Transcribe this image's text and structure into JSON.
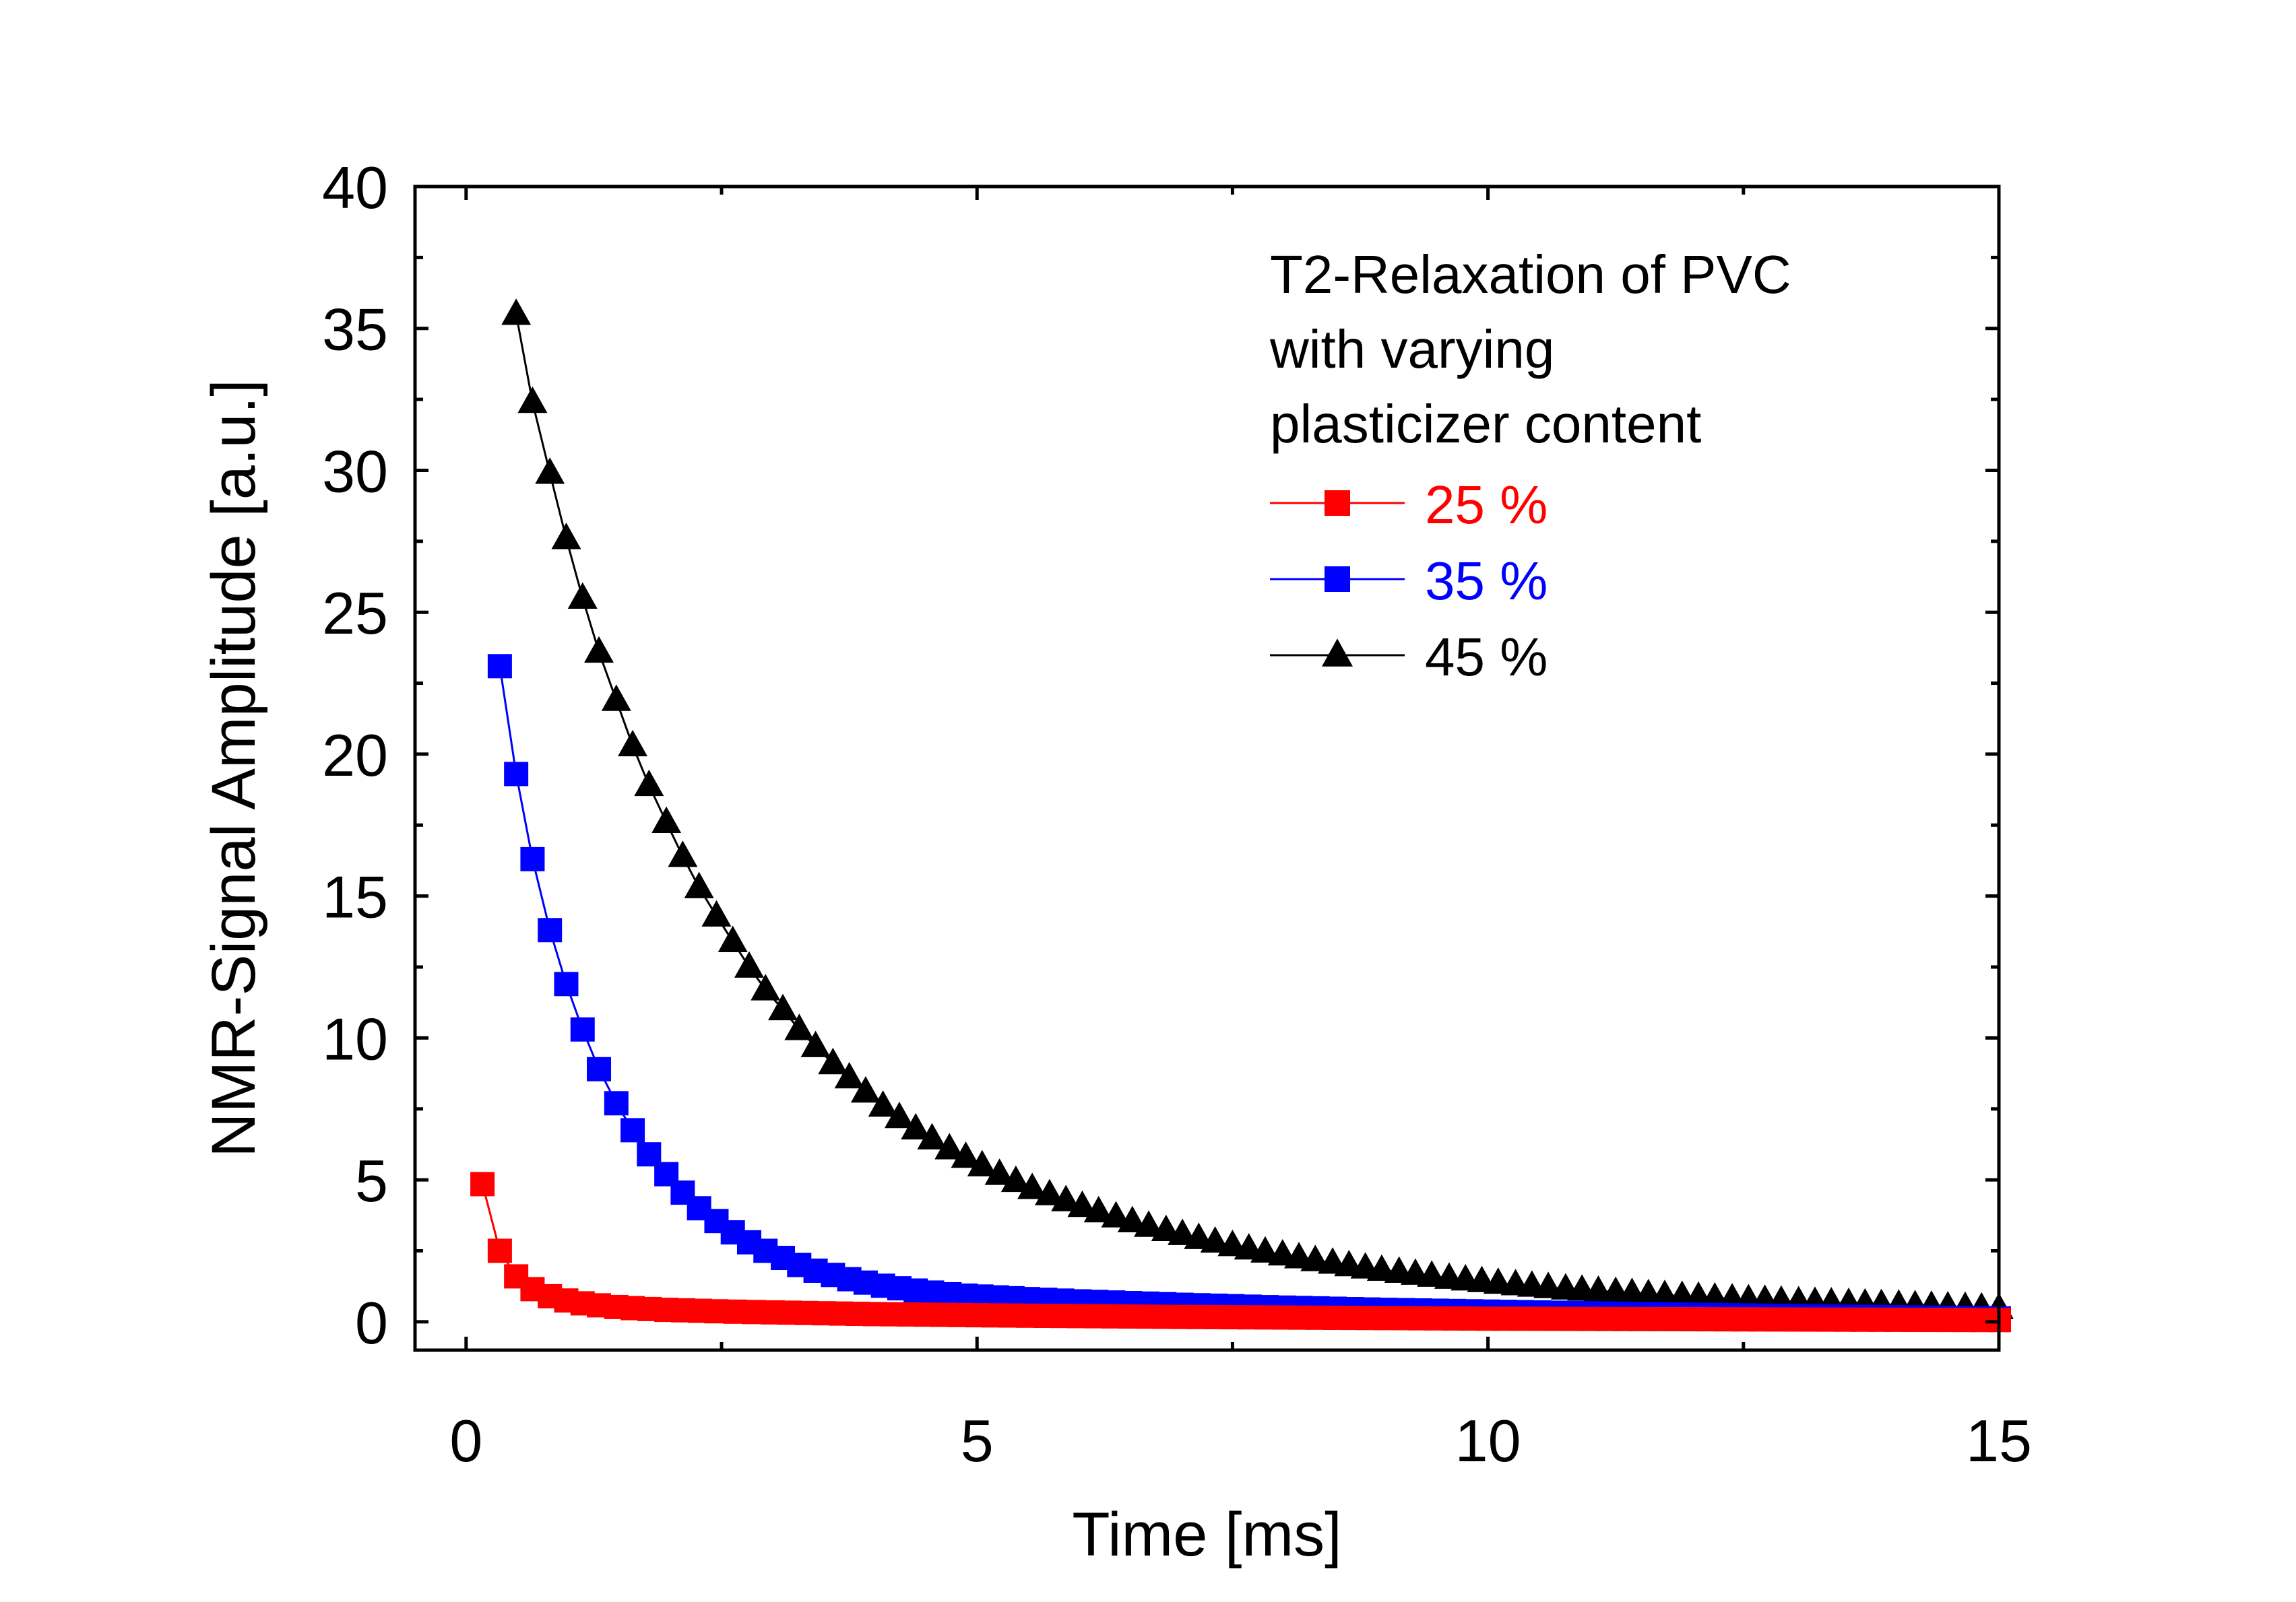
{
  "chart_data": {
    "type": "line",
    "title": "",
    "xlabel": "Time [ms]",
    "ylabel": "NMR-Signal Amplitude [a.u.]",
    "xlim": [
      -0.5,
      15
    ],
    "ylim": [
      -1,
      40
    ],
    "xticks": [
      0,
      5,
      10,
      15
    ],
    "yticks": [
      0,
      5,
      10,
      15,
      20,
      25,
      30,
      35,
      40
    ],
    "xtick_labels": [
      "0",
      "5",
      "10",
      "15"
    ],
    "ytick_labels": [
      "0",
      "5",
      "10",
      "15",
      "20",
      "25",
      "30",
      "35",
      "40"
    ],
    "grid": false,
    "legend": {
      "placement": "top-right",
      "title_lines": [
        "T2-Relaxation of PVC",
        "with varying",
        "plasticizer content"
      ]
    },
    "series": [
      {
        "name": "25 %",
        "color": "#ff0000",
        "marker": "square",
        "description": "points every 0.163 ms from 0.163 to 15 ms",
        "x": [
          0.16,
          0.33,
          0.49,
          0.65,
          0.82,
          0.98,
          1.14,
          1.3,
          1.47,
          1.63,
          1.96,
          2.45,
          3.0,
          4.0,
          5.0,
          6.0,
          7.0,
          8.0,
          9.0,
          10.0,
          11.0,
          12.0,
          13.0,
          14.0,
          15.0
        ],
        "y": [
          4.85,
          2.5,
          1.6,
          1.15,
          0.9,
          0.75,
          0.65,
          0.58,
          0.52,
          0.48,
          0.42,
          0.37,
          0.33,
          0.27,
          0.23,
          0.2,
          0.17,
          0.15,
          0.13,
          0.11,
          0.1,
          0.09,
          0.08,
          0.07,
          0.06
        ]
      },
      {
        "name": "35 %",
        "color": "#0000ff",
        "marker": "square",
        "x": [
          0.33,
          0.49,
          0.65,
          0.82,
          0.98,
          1.14,
          1.3,
          1.47,
          1.63,
          1.79,
          1.96,
          2.12,
          2.28,
          2.45,
          2.61,
          2.77,
          2.93,
          3.1,
          3.26,
          3.42,
          3.59,
          3.75,
          3.91,
          4.08,
          4.24,
          4.4,
          4.56,
          4.73,
          4.89,
          5.5,
          6.0,
          7.0,
          8.0,
          9.0,
          10.0,
          11.0,
          12.0,
          13.0,
          14.0,
          15.0
        ],
        "y": [
          23.1,
          19.3,
          16.3,
          13.8,
          11.9,
          10.3,
          8.9,
          7.7,
          6.75,
          5.9,
          5.2,
          4.55,
          4.0,
          3.55,
          3.15,
          2.8,
          2.5,
          2.25,
          2.0,
          1.8,
          1.65,
          1.5,
          1.38,
          1.27,
          1.18,
          1.1,
          1.03,
          0.97,
          0.92,
          0.8,
          0.72,
          0.6,
          0.5,
          0.42,
          0.36,
          0.3,
          0.25,
          0.2,
          0.16,
          0.12
        ]
      },
      {
        "name": "45 %",
        "color": "#000000",
        "marker": "triangle",
        "x": [
          0.49,
          0.65,
          0.82,
          0.98,
          1.14,
          1.3,
          1.47,
          1.63,
          1.79,
          1.96,
          2.12,
          2.28,
          2.45,
          2.61,
          2.77,
          2.93,
          3.1,
          3.26,
          3.42,
          3.59,
          3.75,
          3.91,
          4.08,
          4.24,
          4.4,
          4.56,
          4.73,
          4.89,
          5.05,
          5.22,
          5.38,
          5.54,
          5.71,
          5.87,
          6.03,
          6.19,
          6.36,
          6.52,
          6.68,
          6.85,
          7.01,
          7.17,
          7.33,
          7.5,
          7.66,
          7.82,
          7.99,
          8.15,
          8.31,
          8.48,
          8.64,
          8.8,
          8.96,
          9.13,
          9.29,
          9.45,
          9.62,
          9.78,
          9.94,
          10.1,
          10.27,
          10.43,
          10.59,
          10.76,
          10.92,
          11.08,
          11.25,
          11.41,
          11.57,
          11.73,
          11.9,
          12.06,
          12.22,
          12.39,
          12.55,
          12.71,
          12.87,
          13.04,
          13.2,
          13.36,
          13.53,
          13.69,
          13.85,
          14.02,
          14.18,
          14.34,
          14.5,
          14.67,
          14.83,
          15.0
        ],
        "y": [
          35.5,
          32.4,
          29.9,
          27.6,
          25.5,
          23.6,
          21.9,
          20.3,
          18.9,
          17.6,
          16.4,
          15.3,
          14.3,
          13.4,
          12.5,
          11.7,
          11.0,
          10.3,
          9.7,
          9.1,
          8.6,
          8.1,
          7.6,
          7.2,
          6.8,
          6.45,
          6.1,
          5.8,
          5.5,
          5.2,
          4.95,
          4.7,
          4.48,
          4.27,
          4.07,
          3.88,
          3.7,
          3.53,
          3.37,
          3.22,
          3.08,
          2.94,
          2.81,
          2.69,
          2.57,
          2.46,
          2.36,
          2.26,
          2.16,
          2.07,
          1.98,
          1.9,
          1.82,
          1.75,
          1.68,
          1.61,
          1.54,
          1.48,
          1.42,
          1.36,
          1.31,
          1.26,
          1.21,
          1.16,
          1.12,
          1.08,
          1.04,
          1.0,
          0.96,
          0.93,
          0.9,
          0.87,
          0.84,
          0.81,
          0.78,
          0.76,
          0.73,
          0.71,
          0.69,
          0.67,
          0.65,
          0.63,
          0.61,
          0.59,
          0.57,
          0.55,
          0.53,
          0.51,
          0.49,
          0.47
        ]
      }
    ]
  }
}
